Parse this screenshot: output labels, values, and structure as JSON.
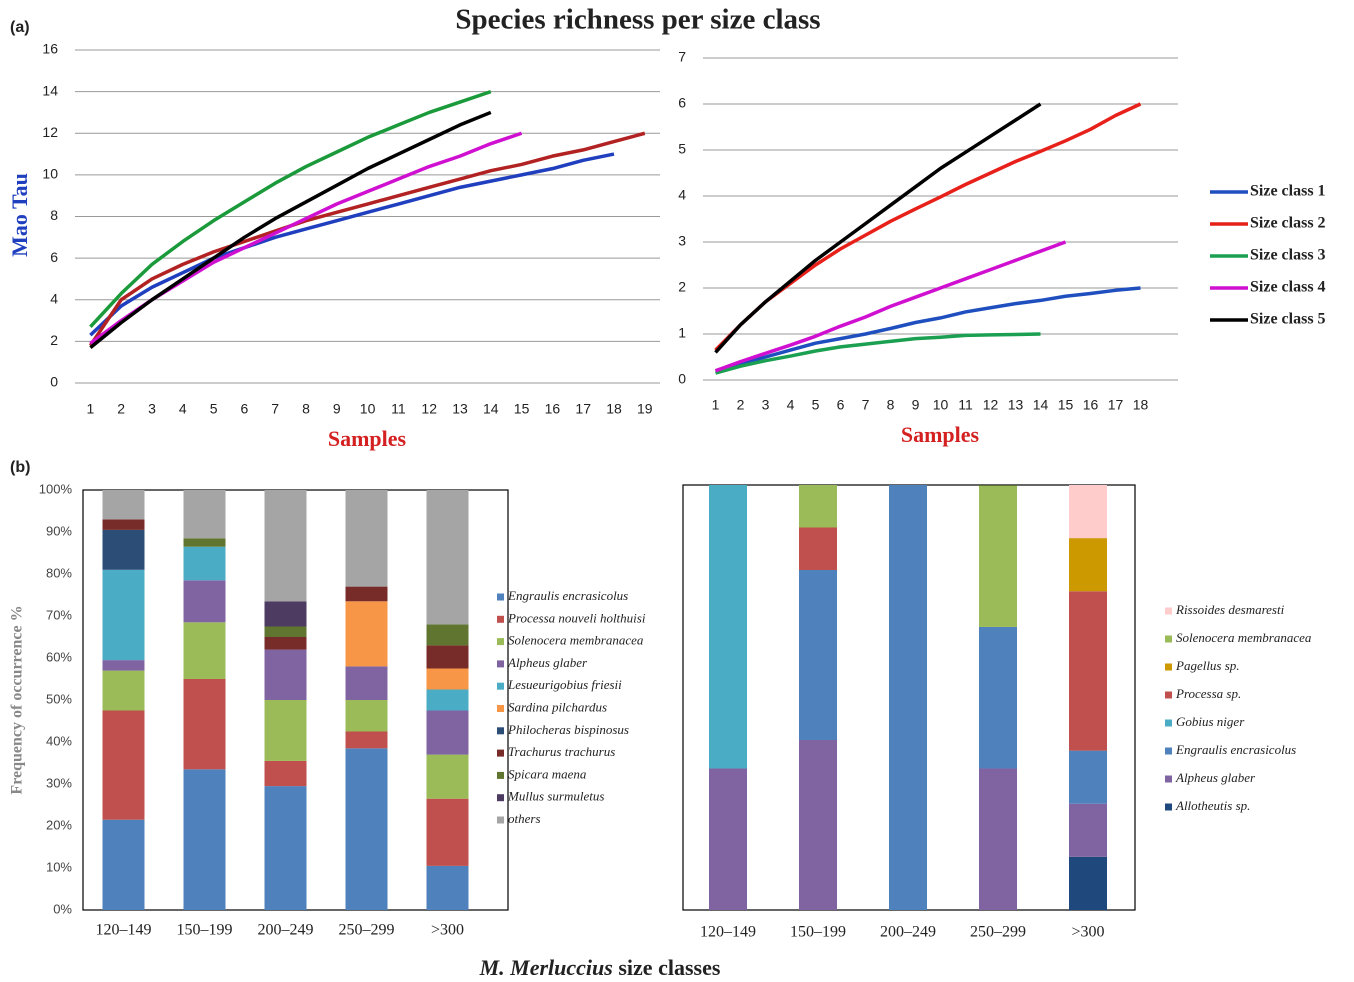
{
  "title": "Species richness per size class",
  "panel_labels": [
    "(a)",
    "(b)"
  ],
  "xlabel_species": "M. Merluccius",
  "xlabel_rest": "size classes",
  "chart_data": [
    {
      "type": "line",
      "xlabel": "Samples",
      "ylabel": "Mao Tau",
      "grid": true,
      "categories": [
        "1",
        "2",
        "3",
        "4",
        "5",
        "6",
        "7",
        "8",
        "9",
        "10",
        "11",
        "12",
        "13",
        "14",
        "15",
        "16",
        "17",
        "18",
        "19"
      ],
      "ylim": [
        0,
        16
      ],
      "yticks": [
        0,
        2,
        4,
        6,
        8,
        10,
        12,
        14,
        16
      ],
      "series": [
        {
          "color": "#1f3fbf",
          "values": [
            2.3,
            3.7,
            4.6,
            5.3,
            6.0,
            6.5,
            7.0,
            7.4,
            7.8,
            8.2,
            8.6,
            9.0,
            9.4,
            9.7,
            10.0,
            10.3,
            10.7,
            11.0,
            null
          ]
        },
        {
          "color": "#b22222",
          "values": [
            1.8,
            4.0,
            5.0,
            5.7,
            6.3,
            6.8,
            7.3,
            7.8,
            8.2,
            8.6,
            9.0,
            9.4,
            9.8,
            10.2,
            10.5,
            10.9,
            11.2,
            11.6,
            12.0
          ]
        },
        {
          "color": "#1a9a3a",
          "values": [
            2.7,
            4.3,
            5.7,
            6.8,
            7.8,
            8.7,
            9.6,
            10.4,
            11.1,
            11.8,
            12.4,
            13.0,
            13.5,
            14.0,
            null,
            null,
            null,
            null,
            null
          ]
        },
        {
          "color": "#d010d0",
          "values": [
            1.9,
            3.0,
            4.0,
            4.9,
            5.8,
            6.5,
            7.2,
            7.9,
            8.6,
            9.2,
            9.8,
            10.4,
            10.9,
            11.5,
            12.0,
            null,
            null,
            null,
            null
          ]
        },
        {
          "color": "#000000",
          "values": [
            1.7,
            2.9,
            4.0,
            5.0,
            6.0,
            7.0,
            7.9,
            8.7,
            9.5,
            10.3,
            11.0,
            11.7,
            12.4,
            13.0,
            null,
            null,
            null,
            null,
            null
          ]
        }
      ]
    },
    {
      "type": "line",
      "xlabel": "Samples",
      "grid": true,
      "legend": "right",
      "categories": [
        "1",
        "2",
        "3",
        "4",
        "5",
        "6",
        "7",
        "8",
        "9",
        "10",
        "11",
        "12",
        "13",
        "14",
        "15",
        "16",
        "17",
        "18"
      ],
      "ylim": [
        0,
        7
      ],
      "yticks": [
        0,
        1,
        2,
        3,
        4,
        5,
        6,
        7
      ],
      "series": [
        {
          "name": "Size class 1",
          "color": "#1f4fbf",
          "values": [
            0.2,
            0.35,
            0.5,
            0.65,
            0.8,
            0.9,
            1.0,
            1.12,
            1.25,
            1.35,
            1.48,
            1.57,
            1.66,
            1.73,
            1.82,
            1.88,
            1.95,
            2.0
          ]
        },
        {
          "name": "Size class 2",
          "color": "#e8201a",
          "values": [
            0.65,
            1.2,
            1.7,
            2.1,
            2.5,
            2.85,
            3.15,
            3.45,
            3.72,
            3.98,
            4.25,
            4.5,
            4.75,
            4.97,
            5.2,
            5.45,
            5.75,
            6.0
          ]
        },
        {
          "name": "Size class 3",
          "color": "#1aa050",
          "values": [
            0.15,
            0.3,
            0.42,
            0.52,
            0.63,
            0.72,
            0.78,
            0.84,
            0.9,
            0.93,
            0.97,
            0.98,
            0.99,
            1.0,
            null,
            null,
            null,
            null
          ]
        },
        {
          "name": "Size class 4",
          "color": "#d010d0",
          "values": [
            0.2,
            0.4,
            0.58,
            0.76,
            0.95,
            1.17,
            1.37,
            1.6,
            1.8,
            2.0,
            2.2,
            2.4,
            2.6,
            2.8,
            3.0,
            null,
            null,
            null
          ]
        },
        {
          "name": "Size class 5",
          "color": "#000000",
          "values": [
            0.6,
            1.2,
            1.7,
            2.15,
            2.6,
            3.0,
            3.4,
            3.8,
            4.2,
            4.6,
            4.95,
            5.3,
            5.65,
            6.0,
            null,
            null,
            null,
            null
          ]
        }
      ]
    },
    {
      "type": "bar",
      "stacked": true,
      "ylabel": "Frequency of occurrence %",
      "legend": "right",
      "categories": [
        "120–149",
        "150–199",
        "200–249",
        "250–299",
        ">300"
      ],
      "ylim": [
        0,
        100
      ],
      "yticks": [
        {
          "value": 0,
          "label": "0%"
        },
        {
          "value": 10,
          "label": "10%"
        },
        {
          "value": 20,
          "label": "20%"
        },
        {
          "value": 30,
          "label": "30%"
        },
        {
          "value": 40,
          "label": "40%"
        },
        {
          "value": 50,
          "label": "50%"
        },
        {
          "value": 60,
          "label": "60%"
        },
        {
          "value": 70,
          "label": "70%"
        },
        {
          "value": 80,
          "label": "80%"
        },
        {
          "value": 90,
          "label": "90%"
        },
        {
          "value": 100,
          "label": "100%"
        }
      ],
      "series": [
        {
          "name": "Engraulis encrasicolus",
          "color": "#4f81bd",
          "values": [
            21.5,
            33.5,
            29.5,
            38.5,
            10.5
          ]
        },
        {
          "name": "Processa nouveli holthuisi",
          "color": "#c0504d",
          "values": [
            26,
            21.5,
            6,
            4,
            16
          ]
        },
        {
          "name": "Solenocera membranacea",
          "color": "#9bbb59",
          "values": [
            9.5,
            13.5,
            14.5,
            7.5,
            10.5
          ]
        },
        {
          "name": "Alpheus glaber",
          "color": "#8064a2",
          "values": [
            2.5,
            10,
            12,
            8,
            10.5
          ]
        },
        {
          "name": "Lesueurigobius friesii",
          "color": "#4bacc6",
          "values": [
            21.5,
            8,
            0,
            0,
            5
          ]
        },
        {
          "name": "Sardina pilchardus",
          "color": "#f79646",
          "values": [
            0,
            0,
            0,
            15.5,
            5
          ]
        },
        {
          "name": "Philocheras bispinosus",
          "color": "#2c4d75",
          "values": [
            9.5,
            0,
            0,
            0,
            0
          ]
        },
        {
          "name": "Trachurus trachurus",
          "color": "#772c2a",
          "values": [
            2.5,
            0,
            3,
            3.5,
            5.5
          ]
        },
        {
          "name": "Spicara maena",
          "color": "#5f7530",
          "values": [
            0,
            2,
            2.5,
            0,
            5
          ]
        },
        {
          "name": "Mullus surmuletus",
          "color": "#4d3b62",
          "values": [
            0,
            0,
            6,
            0,
            0
          ]
        },
        {
          "name": "others",
          "color": "#a5a5a5",
          "values": [
            7,
            11.5,
            26.5,
            23,
            32
          ]
        }
      ]
    },
    {
      "type": "bar",
      "stacked": true,
      "stack_from_last": true,
      "legend": "right",
      "categories": [
        "120–149",
        "150–199",
        "200–249",
        "250–299",
        ">300"
      ],
      "ylim": [
        0,
        100
      ],
      "series": [
        {
          "name": "Rissoides desmaresti",
          "color": "#ffcccc",
          "values": [
            0,
            0,
            0,
            0,
            12.5
          ]
        },
        {
          "name": "Solenocera membranacea",
          "color": "#9bbb59",
          "values": [
            0,
            10,
            0,
            33.3,
            0
          ]
        },
        {
          "name": "Pagellus sp.",
          "color": "#cc9900",
          "values": [
            0,
            0,
            0,
            0,
            12.5
          ]
        },
        {
          "name": "Processa sp.",
          "color": "#c0504d",
          "values": [
            0,
            10,
            0,
            0,
            37.5
          ]
        },
        {
          "name": "Gobius niger",
          "color": "#4bacc6",
          "values": [
            66.7,
            0,
            0,
            0,
            0
          ]
        },
        {
          "name": "Engraulis encrasicolus",
          "color": "#4f81bd",
          "values": [
            0,
            40,
            100,
            33.3,
            12.5
          ]
        },
        {
          "name": "Alpheus glaber",
          "color": "#8064a2",
          "values": [
            33.3,
            40,
            0,
            33.3,
            12.5
          ]
        },
        {
          "name": "Allotheutis sp.",
          "color": "#1f497d",
          "values": [
            0,
            0,
            0,
            0,
            12.5
          ]
        }
      ]
    }
  ]
}
